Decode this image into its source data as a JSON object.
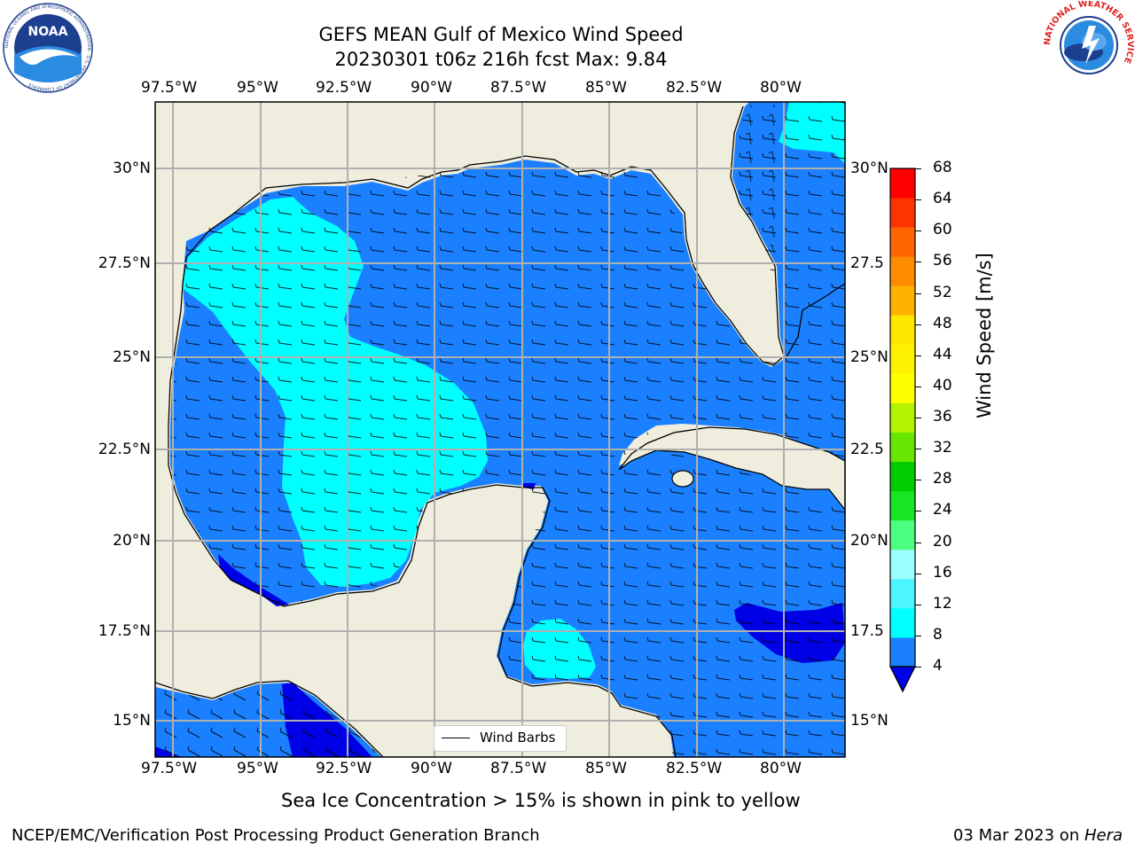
{
  "title": {
    "line1": "GEFS MEAN Gulf of Mexico Wind Speed",
    "line2": "20230301 t06z 216h fcst   Max: 9.84"
  },
  "map": {
    "lon_ticks": [
      "97.5°W",
      "95°W",
      "92.5°W",
      "90°W",
      "87.5°W",
      "85°W",
      "82.5°W",
      "80°W"
    ],
    "lat_ticks_left": [
      "30°N",
      "27.5°N",
      "25°N",
      "22.5°N",
      "20°N",
      "17.5°N",
      "15°N"
    ],
    "lat_ticks_right": [
      "30°N",
      "27.5",
      "25°N",
      "22.5",
      "20°N",
      "17.5",
      "15°N"
    ],
    "lon_values": [
      -97.5,
      -95,
      -92.5,
      -90,
      -87.5,
      -85,
      -82.5,
      -80
    ],
    "lat_values": [
      30,
      27.5,
      25,
      22.5,
      20,
      17.5,
      15
    ],
    "extent": {
      "lon_min": -98,
      "lon_max": -78.2,
      "lat_min": 14,
      "lat_max": 31.8
    },
    "legend_label": "Wind Barbs",
    "colors": {
      "land": "#efeddd",
      "ocean_4_8": "#1a80ff",
      "ocean_8_12": "#00ffff",
      "below_4": "#0000e6",
      "grid": "#b0b0b0"
    }
  },
  "colorbar": {
    "label": "Wind Speed [m/s]",
    "ticks": [
      "68",
      "64",
      "60",
      "56",
      "52",
      "48",
      "44",
      "40",
      "36",
      "32",
      "28",
      "24",
      "20",
      "16",
      "12",
      "8",
      "4"
    ],
    "levels": [
      4,
      8,
      12,
      16,
      20,
      24,
      28,
      32,
      36,
      40,
      44,
      48,
      52,
      56,
      60,
      64,
      68
    ],
    "colors": [
      "#1a80ff",
      "#00ffff",
      "#4df5ff",
      "#9bffff",
      "#4dff80",
      "#18e625",
      "#00cc00",
      "#66e600",
      "#b3f200",
      "#ffff00",
      "#fff200",
      "#ffe600",
      "#ffb300",
      "#ff8c00",
      "#ff6600",
      "#ff3300",
      "#ff0000"
    ],
    "under_color": "#0000e6"
  },
  "note": "Sea Ice Concentration > 15% is shown in pink to yellow",
  "footer": {
    "left": "NCEP/EMC/Verification Post Processing Product Generation Branch",
    "date": "03 Mar 2023 on ",
    "machine": "Hera"
  },
  "logos": {
    "noaa": "NOAA",
    "noaa_ring": "NATIONAL OCEANIC AND ATMOSPHERIC ADMINISTRATION · U.S. DEPARTMENT OF COMMERCE",
    "nws_ring": "NATIONAL WEATHER SERVICE"
  }
}
